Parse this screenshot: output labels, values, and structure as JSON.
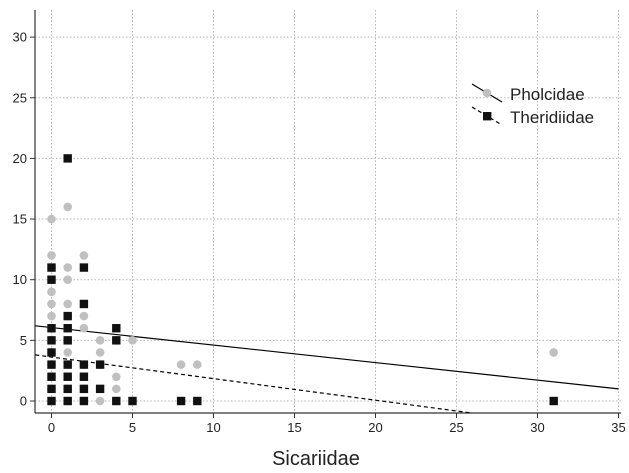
{
  "chart_data": {
    "type": "scatter",
    "title": "",
    "xlabel": "Sicariidae",
    "ylabel": "",
    "xlim": [
      -1,
      35
    ],
    "ylim": [
      -1,
      32
    ],
    "xticks": [
      0,
      5,
      10,
      15,
      20,
      25,
      30,
      35
    ],
    "yticks": [
      0,
      5,
      10,
      15,
      20,
      25,
      30
    ],
    "grid": true,
    "legend_position": "top-right",
    "series": [
      {
        "name": "Pholcidae",
        "marker": "circle",
        "color": "#c0c0c0",
        "points": [
          [
            0,
            0
          ],
          [
            0,
            1
          ],
          [
            0,
            2
          ],
          [
            0,
            3
          ],
          [
            0,
            4
          ],
          [
            0,
            5
          ],
          [
            0,
            6
          ],
          [
            0,
            7
          ],
          [
            0,
            8
          ],
          [
            0,
            9
          ],
          [
            0,
            10
          ],
          [
            0,
            11
          ],
          [
            0,
            12
          ],
          [
            0,
            15
          ],
          [
            1,
            0
          ],
          [
            1,
            1
          ],
          [
            1,
            2
          ],
          [
            1,
            3
          ],
          [
            1,
            4
          ],
          [
            1,
            5
          ],
          [
            1,
            6
          ],
          [
            1,
            7
          ],
          [
            1,
            8
          ],
          [
            1,
            10
          ],
          [
            1,
            11
          ],
          [
            1,
            16
          ],
          [
            2,
            0
          ],
          [
            2,
            1
          ],
          [
            2,
            2
          ],
          [
            2,
            3
          ],
          [
            2,
            6
          ],
          [
            2,
            7
          ],
          [
            2,
            12
          ],
          [
            3,
            0
          ],
          [
            3,
            3
          ],
          [
            3,
            4
          ],
          [
            3,
            5
          ],
          [
            4,
            0
          ],
          [
            4,
            1
          ],
          [
            4,
            2
          ],
          [
            4,
            5
          ],
          [
            5,
            5
          ],
          [
            8,
            3
          ],
          [
            9,
            3
          ],
          [
            31,
            4
          ]
        ],
        "trendline": {
          "style": "solid",
          "from": [
            -1,
            6.2
          ],
          "to": [
            35,
            1.0
          ]
        }
      },
      {
        "name": "Theridiidae",
        "marker": "square",
        "color": "#111111",
        "points": [
          [
            0,
            0
          ],
          [
            0,
            1
          ],
          [
            0,
            2
          ],
          [
            0,
            3
          ],
          [
            0,
            4
          ],
          [
            0,
            5
          ],
          [
            0,
            6
          ],
          [
            0,
            10
          ],
          [
            0,
            11
          ],
          [
            1,
            0
          ],
          [
            1,
            1
          ],
          [
            1,
            2
          ],
          [
            1,
            3
          ],
          [
            1,
            5
          ],
          [
            1,
            6
          ],
          [
            1,
            7
          ],
          [
            1,
            20
          ],
          [
            2,
            0
          ],
          [
            2,
            1
          ],
          [
            2,
            2
          ],
          [
            2,
            3
          ],
          [
            2,
            8
          ],
          [
            2,
            11
          ],
          [
            3,
            1
          ],
          [
            3,
            3
          ],
          [
            4,
            0
          ],
          [
            4,
            5
          ],
          [
            4,
            6
          ],
          [
            5,
            0
          ],
          [
            8,
            0
          ],
          [
            9,
            0
          ],
          [
            31,
            0
          ]
        ],
        "trendline": {
          "style": "dashed",
          "from": [
            -1,
            3.8
          ],
          "to": [
            26,
            -1
          ]
        }
      }
    ]
  }
}
